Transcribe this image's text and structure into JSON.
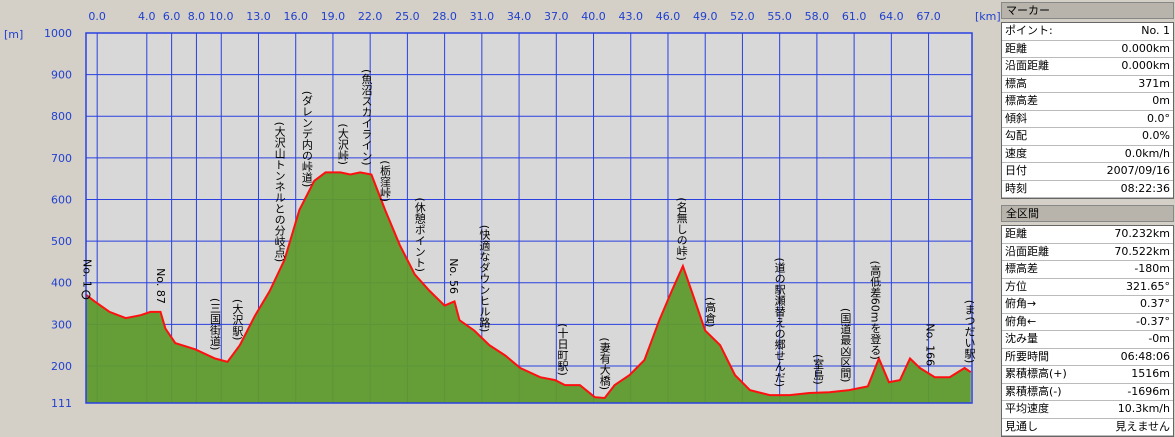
{
  "chart_data": {
    "type": "area",
    "xlabel": "[km]",
    "ylabel": "[m]",
    "line_color": "#ff1010",
    "fill_color": "#5f9a2e",
    "grid": true,
    "xlim": [
      -0.9,
      70.5
    ],
    "ylim": [
      111,
      1000
    ],
    "xticks": [
      {
        "value": 0,
        "label": "0.0"
      },
      {
        "value": 4,
        "label": "4.0"
      },
      {
        "value": 6,
        "label": "6.0"
      },
      {
        "value": 8,
        "label": "8.0"
      },
      {
        "value": 10,
        "label": "10.0"
      },
      {
        "value": 13,
        "label": "13.0"
      },
      {
        "value": 16,
        "label": "16.0"
      },
      {
        "value": 19,
        "label": "19.0"
      },
      {
        "value": 22,
        "label": "22.0"
      },
      {
        "value": 25,
        "label": "25.0"
      },
      {
        "value": 28,
        "label": "28.0"
      },
      {
        "value": 31,
        "label": "31.0"
      },
      {
        "value": 34,
        "label": "34.0"
      },
      {
        "value": 37,
        "label": "37.0"
      },
      {
        "value": 40,
        "label": "40.0"
      },
      {
        "value": 43,
        "label": "43.0"
      },
      {
        "value": 46,
        "label": "46.0"
      },
      {
        "value": 49,
        "label": "49.0"
      },
      {
        "value": 52,
        "label": "52.0"
      },
      {
        "value": 55,
        "label": "55.0"
      },
      {
        "value": 58,
        "label": "58.0"
      },
      {
        "value": 61,
        "label": "61.0"
      },
      {
        "value": 64,
        "label": "64.0"
      },
      {
        "value": 67,
        "label": "67.0"
      }
    ],
    "yticks": [
      1000,
      900,
      800,
      700,
      600,
      500,
      400,
      300,
      200,
      111
    ],
    "x": [
      -0.9,
      -0.2,
      1.0,
      2.3,
      3.5,
      4.3,
      5.1,
      5.5,
      6.3,
      7.9,
      9.5,
      10.5,
      11.5,
      12.7,
      13.9,
      15.1,
      16.3,
      17.5,
      18.4,
      19.6,
      20.4,
      21.2,
      22.1,
      23.2,
      24.4,
      25.6,
      26.8,
      28.0,
      28.8,
      29.2,
      30.4,
      31.6,
      32.9,
      34.1,
      35.7,
      36.9,
      37.7,
      38.9,
      40.1,
      40.9,
      41.7,
      42.9,
      44.1,
      45.3,
      46.3,
      47.2,
      47.9,
      49.0,
      50.2,
      51.4,
      52.6,
      54.2,
      55.8,
      57.4,
      59.0,
      60.6,
      62.1,
      63.0,
      63.8,
      64.7,
      65.5,
      66.3,
      67.5,
      68.7,
      69.9,
      70.4
    ],
    "values": [
      371,
      355,
      330,
      315,
      322,
      330,
      330,
      290,
      255,
      240,
      218,
      210,
      250,
      320,
      380,
      455,
      575,
      645,
      665,
      665,
      660,
      665,
      660,
      575,
      490,
      420,
      380,
      345,
      355,
      310,
      285,
      250,
      225,
      195,
      173,
      166,
      154,
      154,
      125,
      123,
      154,
      178,
      214,
      310,
      380,
      440,
      380,
      285,
      250,
      178,
      142,
      130,
      130,
      135,
      137,
      142,
      151,
      218,
      161,
      166,
      218,
      195,
      173,
      173,
      195,
      185
    ],
    "annotations": [
      {
        "text": "No. 1",
        "x": -0.8
      },
      {
        "text": "No. 87",
        "x": 5.1
      },
      {
        "text": "(三国街道)",
        "x": 9.5
      },
      {
        "text": "(大沢駅)",
        "x": 11.3
      },
      {
        "text": "(大沢山トンネルとの分岐点)",
        "x": 14.7
      },
      {
        "text": "(ダレンデ内の峠道)",
        "x": 16.9
      },
      {
        "text": "(大沢峠)",
        "x": 19.8
      },
      {
        "text": "(魚沼スカイライン)",
        "x": 21.7
      },
      {
        "text": "(栃窪峠)",
        "x": 23.2
      },
      {
        "text": "(休憩ポイント)",
        "x": 26.0
      },
      {
        "text": "No. 56",
        "x": 28.7
      },
      {
        "text": "(快適なダウンヒル路)",
        "x": 31.2
      },
      {
        "text": "(十日町駅)",
        "x": 37.5
      },
      {
        "text": "(妻有大橋)",
        "x": 40.9
      },
      {
        "text": "(名無しの峠)",
        "x": 47.1
      },
      {
        "text": "(高倉)",
        "x": 49.4
      },
      {
        "text": "(道の駅瀬替えの郷せんだ)",
        "x": 55.0
      },
      {
        "text": "(室島)",
        "x": 58.1
      },
      {
        "text": "(国道最凶区間)",
        "x": 60.3
      },
      {
        "text": "(高低差60mを登る)",
        "x": 62.7
      },
      {
        "text": "No. 166",
        "x": 67.1
      },
      {
        "text": "(まつだい駅)",
        "x": 70.3
      }
    ]
  },
  "panel": {
    "marker": {
      "title": "マーカー",
      "rows": [
        [
          "ポイント:",
          "No. 1"
        ],
        [
          "距離",
          "0.000km"
        ],
        [
          "沿面距離",
          "0.000km"
        ],
        [
          "標高",
          "371m"
        ],
        [
          "標高差",
          "0m"
        ],
        [
          "傾斜",
          "0.0°"
        ],
        [
          "勾配",
          "0.0%"
        ],
        [
          "速度",
          "0.0km/h"
        ],
        [
          "日付",
          "2007/09/16"
        ],
        [
          "時刻",
          "08:22:36"
        ]
      ]
    },
    "total": {
      "title": "全区間",
      "rows": [
        [
          "距離",
          "70.232km"
        ],
        [
          "沿面距離",
          "70.522km"
        ],
        [
          "標高差",
          "-180m"
        ],
        [
          "方位",
          "321.65°"
        ],
        [
          "俯角→",
          "0.37°"
        ],
        [
          "俯角←",
          "-0.37°"
        ],
        [
          "沈み量",
          "-0m"
        ],
        [
          "所要時間",
          "06:48:06"
        ],
        [
          "累積標高(+)",
          "1516m"
        ],
        [
          "累積標高(-)",
          "-1696m"
        ],
        [
          "平均速度",
          "10.3km/h"
        ],
        [
          "見通し",
          "見えません"
        ]
      ]
    }
  }
}
